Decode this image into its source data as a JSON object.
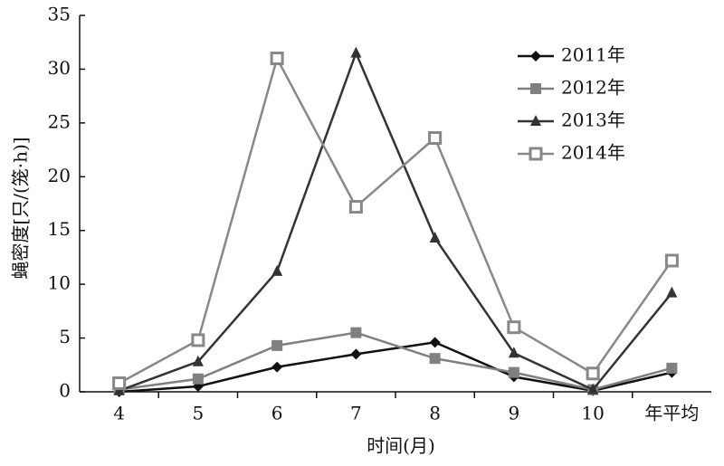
{
  "chart_data": {
    "type": "line",
    "xlabel": "时间(月)",
    "ylabel": "蝇密度[只/(笼·h)]",
    "categories": [
      "4",
      "5",
      "6",
      "7",
      "8",
      "9",
      "10",
      "年平均"
    ],
    "ylim": [
      0,
      35
    ],
    "yticks": [
      0,
      5,
      10,
      15,
      20,
      25,
      30,
      35
    ],
    "grid": false,
    "legend": "upper-right",
    "series": [
      {
        "name": "2011年",
        "color": "#111111",
        "marker": "diamond",
        "values": [
          0,
          0.5,
          2.3,
          3.5,
          4.6,
          1.4,
          0.1,
          1.8
        ]
      },
      {
        "name": "2012年",
        "color": "#808080",
        "marker": "square",
        "values": [
          0.2,
          1.2,
          4.3,
          5.5,
          3.1,
          1.8,
          0.2,
          2.2
        ]
      },
      {
        "name": "2013年",
        "color": "#333333",
        "marker": "triangle",
        "values": [
          0.1,
          2.8,
          11.2,
          31.5,
          14.3,
          3.6,
          0.2,
          9.2
        ]
      },
      {
        "name": "2014年",
        "color": "#888888",
        "marker": "open-square",
        "values": [
          0.8,
          4.8,
          31.0,
          17.2,
          23.6,
          6.0,
          1.7,
          12.2
        ]
      }
    ]
  }
}
